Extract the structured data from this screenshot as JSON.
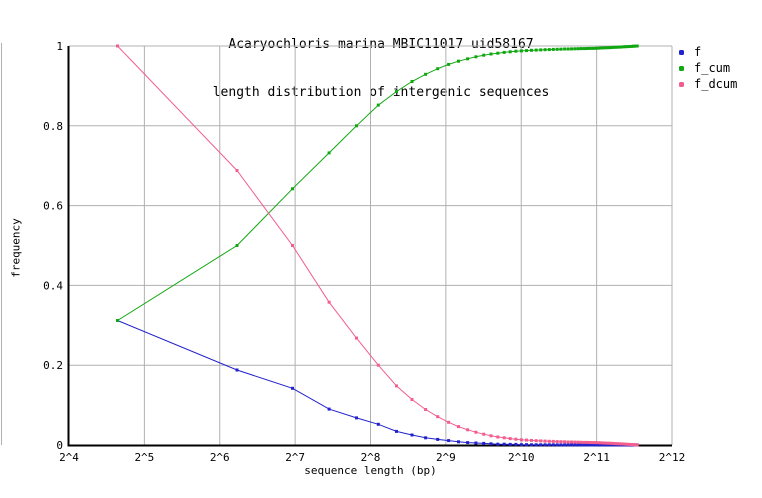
{
  "page": {
    "background": "#ffffff",
    "border_rule_color": "#b0b0b0"
  },
  "chart_data": {
    "type": "line",
    "title": "Acaryochloris marina MBIC11017 uid58167",
    "subtitle": "length distribution of intergenic sequences",
    "xlabel": "sequence length (bp)",
    "ylabel": "frequency",
    "x_scale": "log2",
    "xlim_log2": [
      4,
      12
    ],
    "ylim": [
      0,
      1
    ],
    "grid": true,
    "legend_position": "outside-right",
    "bin_width_bp": 50,
    "x_tick_labels": [
      "2^4",
      "2^5",
      "2^6",
      "2^7",
      "2^8",
      "2^9",
      "2^10",
      "2^11",
      "2^12"
    ],
    "x_tick_log2": [
      4,
      5,
      6,
      7,
      8,
      9,
      10,
      11,
      12
    ],
    "y_tick_labels": [
      "0",
      "0.2",
      "0.4",
      "0.6",
      "0.8",
      "1"
    ],
    "y_tick_values": [
      0,
      0.2,
      0.4,
      0.6,
      0.8,
      1
    ],
    "colors": {
      "grid": "#b0b0b0",
      "axis": "#000000",
      "text": "#000000"
    },
    "x": [
      25,
      75,
      125,
      175,
      225,
      275,
      325,
      375,
      425,
      475,
      525,
      575,
      625,
      675,
      725,
      775,
      825,
      875,
      925,
      975,
      1025,
      1075,
      1125,
      1175,
      1225,
      1275,
      1325,
      1375,
      1425,
      1475,
      1525,
      1575,
      1625,
      1675,
      1725,
      1775,
      1825,
      1875,
      1925,
      1975,
      2025,
      2075,
      2125,
      2175,
      2225,
      2275,
      2325,
      2375,
      2425,
      2475,
      2525,
      2575,
      2625,
      2675,
      2725,
      2775,
      2825,
      2875,
      2925,
      2975
    ],
    "series": [
      {
        "name": "f",
        "color": "#2222cc",
        "marker": "square",
        "values": [
          0.312,
          0.188,
          0.142,
          0.09,
          0.068,
          0.052,
          0.034,
          0.025,
          0.018,
          0.014,
          0.011,
          0.008,
          0.006,
          0.005,
          0.004,
          0.003,
          0.002,
          0.002,
          0.0015,
          0.0015,
          0.0008,
          0.0007,
          0.0006,
          0.0006,
          0.0005,
          0.0005,
          0.0004,
          0.0004,
          0.0003,
          0.0003,
          0.0003,
          0.0002,
          0.0002,
          0.0002,
          0.0002,
          0.0002,
          0.0002,
          0.0002,
          0.0001,
          0.0001,
          0.0003,
          0.0003,
          0.0003,
          0.0003,
          0.0003,
          0.0003,
          0.0003,
          0.0003,
          0.0003,
          0.0003,
          0.0003,
          0.0003,
          0.0003,
          0.0003,
          0.0003,
          0.0003,
          0.0003,
          0.0003,
          0.0003,
          0.0003
        ]
      },
      {
        "name": "f_cum",
        "color": "#10a810",
        "marker": "square",
        "values": [
          0.312,
          0.5,
          0.642,
          0.732,
          0.8,
          0.852,
          0.886,
          0.911,
          0.929,
          0.943,
          0.954,
          0.962,
          0.968,
          0.973,
          0.977,
          0.98,
          0.982,
          0.984,
          0.9855,
          0.987,
          0.9878,
          0.9885,
          0.9891,
          0.9897,
          0.9902,
          0.9907,
          0.9911,
          0.9915,
          0.9918,
          0.9921,
          0.9924,
          0.9926,
          0.9928,
          0.993,
          0.9932,
          0.9934,
          0.9936,
          0.9938,
          0.9939,
          0.994,
          0.9943,
          0.9946,
          0.9949,
          0.9952,
          0.9955,
          0.9958,
          0.9961,
          0.9964,
          0.9967,
          0.997,
          0.9973,
          0.9976,
          0.9979,
          0.9982,
          0.9985,
          0.9988,
          0.9991,
          0.9994,
          0.9997,
          1.0
        ]
      },
      {
        "name": "f_dcum",
        "color": "#f25e8e",
        "marker": "square",
        "values": [
          1.0,
          0.688,
          0.5,
          0.358,
          0.268,
          0.2,
          0.148,
          0.114,
          0.089,
          0.071,
          0.057,
          0.046,
          0.038,
          0.032,
          0.027,
          0.023,
          0.02,
          0.018,
          0.016,
          0.0145,
          0.013,
          0.0122,
          0.0115,
          0.0109,
          0.0103,
          0.0098,
          0.0093,
          0.0089,
          0.0085,
          0.0082,
          0.0079,
          0.0076,
          0.0074,
          0.0072,
          0.007,
          0.0068,
          0.0066,
          0.0064,
          0.0062,
          0.0061,
          0.006,
          0.0057,
          0.0054,
          0.0051,
          0.0048,
          0.0045,
          0.0042,
          0.0039,
          0.0036,
          0.0033,
          0.003,
          0.0027,
          0.0024,
          0.0021,
          0.0018,
          0.0015,
          0.0012,
          0.0009,
          0.0006,
          0.0003
        ]
      }
    ]
  }
}
